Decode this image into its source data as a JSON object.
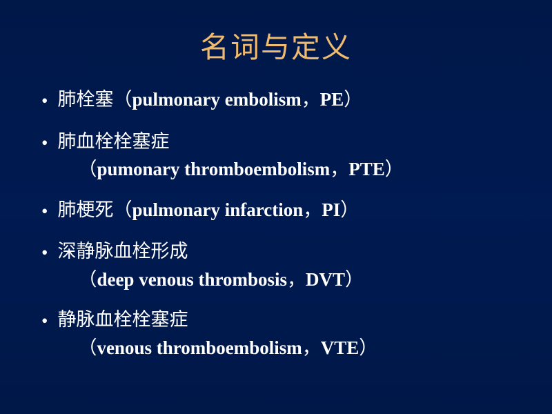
{
  "slide": {
    "title": "名词与定义",
    "colors": {
      "background_gradient_start": "#001848",
      "background_gradient_end": "#001a52",
      "title_color": "#f0bb6e",
      "text_color": "#ffffff"
    },
    "typography": {
      "title_fontsize": 42,
      "body_fontsize": 27,
      "title_font": "SimSun",
      "body_cn_font": "SimSun",
      "body_en_font": "Times New Roman"
    },
    "bullets": [
      {
        "cn": "肺栓塞",
        "paren_open": "（",
        "en": "pulmonary embolism",
        "comma": "，",
        "abbr": "PE",
        "paren_close": "）",
        "multiline": false
      },
      {
        "cn": "肺血栓栓塞症",
        "paren_open": "（",
        "en": "pumonary thromboembolism",
        "comma": "，",
        "abbr": "PTE",
        "paren_close": "）",
        "multiline": true
      },
      {
        "cn": "肺梗死",
        "paren_open": "（",
        "en": "pulmonary infarction",
        "comma": "，",
        "abbr": "PI",
        "paren_close": "）",
        "multiline": false
      },
      {
        "cn": "深静脉血栓形成",
        "paren_open": "（",
        "en": "deep venous thrombosis",
        "comma": "，",
        "abbr": "DVT",
        "paren_close": "）",
        "multiline": true
      },
      {
        "cn": "静脉血栓栓塞症",
        "paren_open": "（",
        "en": "venous thromboembolism",
        "comma": "，",
        "abbr": "VTE",
        "paren_close": "）",
        "multiline": true
      }
    ]
  }
}
